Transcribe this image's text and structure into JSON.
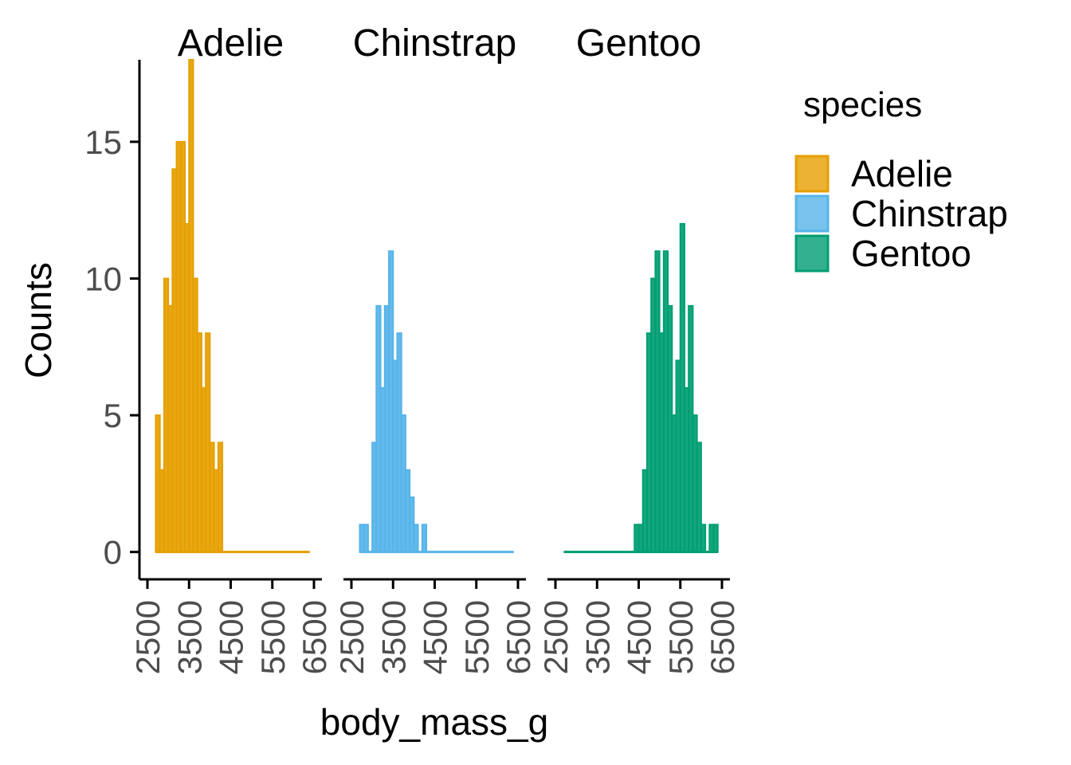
{
  "chart_data": {
    "type": "bar",
    "chart_kind": "faceted histogram",
    "xlabel": "body_mass_g",
    "ylabel": "Counts",
    "x_ticks": [
      2500,
      3500,
      4500,
      5500,
      6500
    ],
    "xlim": [
      2500,
      6500
    ],
    "y_ticks": [
      0,
      5,
      10,
      15
    ],
    "ylim": [
      -1,
      18
    ],
    "bin_width": 100,
    "grid": false,
    "legend_title": "species",
    "legend_position": "right",
    "series": [
      {
        "name": "Adelie",
        "color": "#E69F00",
        "fill": "#E69F00",
        "bins_start": 2700,
        "counts": [
          5,
          3,
          10,
          9,
          14,
          15,
          15,
          12,
          18,
          10,
          8,
          6,
          8,
          4,
          3,
          4,
          0,
          0,
          0,
          0,
          0,
          0,
          0,
          0,
          0,
          0,
          0,
          0,
          0,
          0,
          0,
          0,
          0,
          0,
          0,
          0,
          0
        ]
      },
      {
        "name": "Chinstrap",
        "color": "#56B4E9",
        "fill": "#56B4E9",
        "bins_start": 2700,
        "counts": [
          1,
          1,
          0,
          4,
          9,
          6,
          9,
          11,
          7,
          8,
          5,
          3,
          2,
          1,
          0,
          1,
          0,
          0,
          0,
          0,
          0,
          0,
          0,
          0,
          0,
          0,
          0,
          0,
          0,
          0,
          0,
          0,
          0,
          0,
          0,
          0,
          0
        ]
      },
      {
        "name": "Gentoo",
        "color": "#009E73",
        "fill": "#009E73",
        "bins_start": 2700,
        "counts": [
          0,
          0,
          0,
          0,
          0,
          0,
          0,
          0,
          0,
          0,
          0,
          0,
          0,
          0,
          0,
          0,
          0,
          1,
          1,
          3,
          8,
          10,
          11,
          8,
          11,
          9,
          5,
          7,
          12,
          6,
          9,
          5,
          4,
          1,
          0,
          1,
          1
        ]
      }
    ]
  }
}
